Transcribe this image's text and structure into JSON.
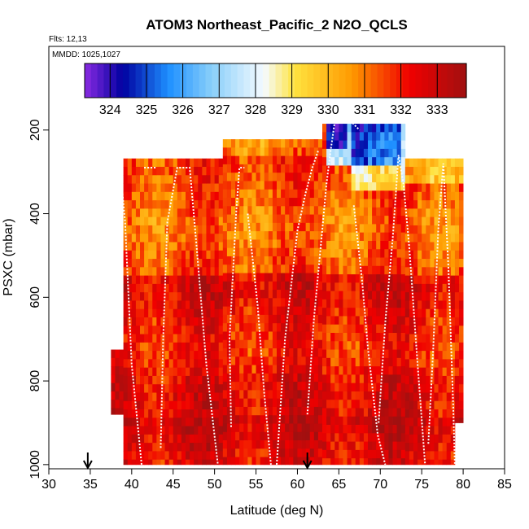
{
  "chart_data": {
    "type": "heatmap",
    "title": "ATOM3 Northeast_Pacific_2 N2O_QCLS",
    "flights_label": "Flts: 12,13",
    "mmdd_label": "MMDD: 1025,1027",
    "xlabel": "Latitude (deg N)",
    "ylabel": "PSXC (mbar)",
    "xlim": [
      30,
      85
    ],
    "ylim": [
      1010,
      0
    ],
    "x_ticks": [
      "30",
      "35",
      "40",
      "45",
      "50",
      "55",
      "60",
      "65",
      "70",
      "75",
      "80",
      "85"
    ],
    "y_ticks": [
      "200",
      "400",
      "600",
      "800",
      "1000"
    ],
    "colorbar": {
      "ticks": [
        "324",
        "325",
        "326",
        "327",
        "328",
        "329",
        "330",
        "331",
        "332",
        "333"
      ],
      "range": [
        323.3,
        333.8
      ]
    },
    "arrow_markers": [
      34.7,
      61.2
    ],
    "colors": {
      "purple": "#8a2be2",
      "dark_blue": "#0000a0",
      "blue": "#1e90ff",
      "light_blue": "#87cefa",
      "pale": "#f5fbff",
      "yellow": "#ffe340",
      "orange": "#ff9a00",
      "red": "#f00000",
      "dark_red": "#a01010"
    }
  }
}
